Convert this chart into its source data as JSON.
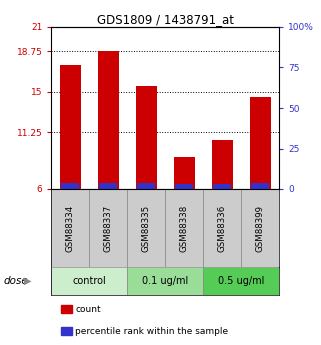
{
  "title": "GDS1809 / 1438791_at",
  "samples": [
    "GSM88334",
    "GSM88337",
    "GSM88335",
    "GSM88338",
    "GSM88336",
    "GSM88399"
  ],
  "red_values": [
    17.5,
    18.75,
    15.5,
    9.0,
    10.5,
    14.5
  ],
  "blue_values": [
    6.6,
    6.6,
    6.6,
    6.5,
    6.5,
    6.6
  ],
  "baseline": 6,
  "ylim_left": [
    6,
    21
  ],
  "ylim_right": [
    0,
    100
  ],
  "yticks_left": [
    6,
    11.25,
    15,
    18.75,
    21
  ],
  "yticks_right": [
    0,
    25,
    50,
    75,
    100
  ],
  "ytick_labels_left": [
    "6",
    "11.25",
    "15",
    "18.75",
    "21"
  ],
  "ytick_labels_right": [
    "0",
    "25",
    "50",
    "75",
    "100%"
  ],
  "hlines": [
    11.25,
    15,
    18.75
  ],
  "groups": [
    {
      "label": "control",
      "span": [
        0,
        1
      ],
      "color": "#cceecc"
    },
    {
      "label": "0.1 ug/ml",
      "span": [
        2,
        3
      ],
      "color": "#99dd99"
    },
    {
      "label": "0.5 ug/ml",
      "span": [
        4,
        5
      ],
      "color": "#55cc55"
    }
  ],
  "bar_color_red": "#cc0000",
  "bar_color_blue": "#3333cc",
  "bar_width": 0.55,
  "left_tick_color": "#cc0000",
  "right_tick_color": "#3333cc",
  "legend_red": "count",
  "legend_blue": "percentile rank within the sample",
  "dose_label": "dose",
  "sample_box_color": "#cccccc"
}
